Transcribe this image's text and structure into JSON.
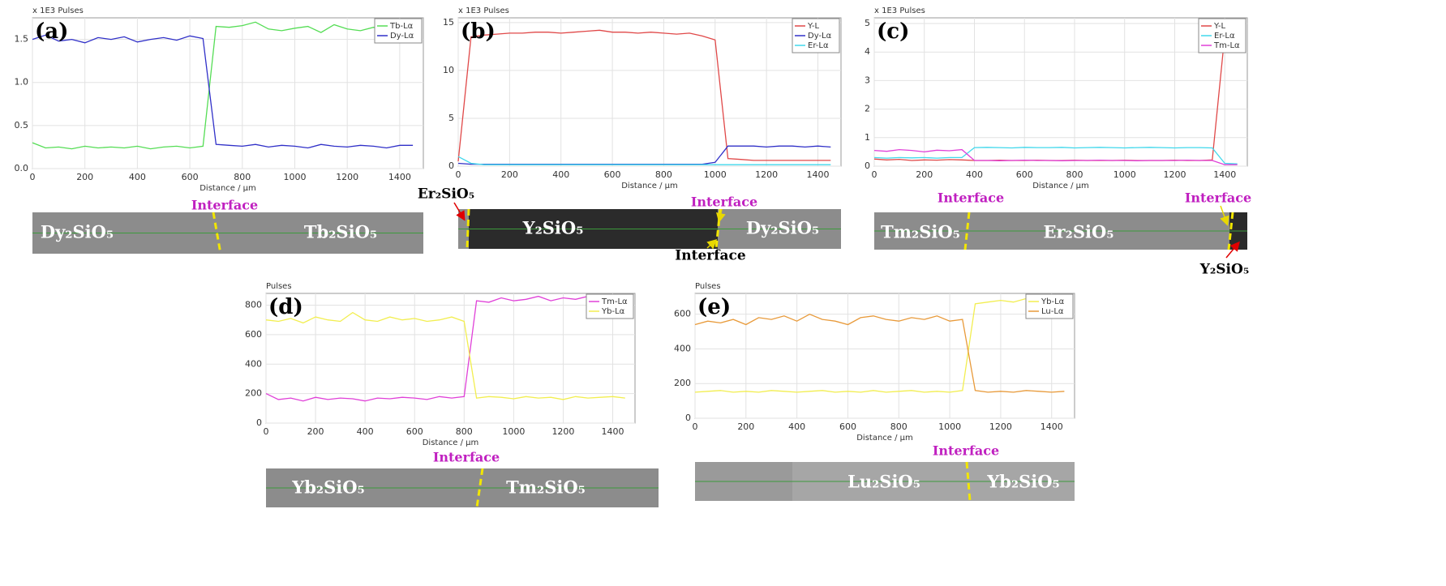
{
  "chart_data": [
    {
      "type": "line",
      "panel_label": "(a)",
      "y_unit_label": "x 1E3 Pulses",
      "xlabel": "Distance / µm",
      "x": [
        0,
        50,
        100,
        150,
        200,
        250,
        300,
        350,
        400,
        450,
        500,
        550,
        600,
        650,
        700,
        750,
        800,
        850,
        900,
        950,
        1000,
        1050,
        1100,
        1150,
        1200,
        1250,
        1300,
        1350,
        1400,
        1450
      ],
      "series": [
        {
          "name": "Tb-Lα",
          "color": "#55dd55",
          "values": [
            0.3,
            0.24,
            0.25,
            0.23,
            0.26,
            0.24,
            0.25,
            0.24,
            0.26,
            0.23,
            0.25,
            0.26,
            0.24,
            0.26,
            1.65,
            1.64,
            1.66,
            1.7,
            1.62,
            1.6,
            1.63,
            1.65,
            1.58,
            1.67,
            1.62,
            1.6,
            1.64,
            1.63,
            1.55,
            1.58
          ]
        },
        {
          "name": "Dy-Lα",
          "color": "#3030c8",
          "values": [
            1.5,
            1.55,
            1.48,
            1.5,
            1.46,
            1.52,
            1.5,
            1.53,
            1.47,
            1.5,
            1.52,
            1.49,
            1.54,
            1.51,
            0.28,
            0.27,
            0.26,
            0.28,
            0.25,
            0.27,
            0.26,
            0.24,
            0.28,
            0.26,
            0.25,
            0.27,
            0.26,
            0.24,
            0.27,
            0.27
          ]
        }
      ],
      "xlim": [
        0,
        1490
      ],
      "xticks": [
        0,
        200,
        400,
        600,
        800,
        1000,
        1200,
        1400
      ],
      "ylim": [
        0,
        1.75
      ],
      "yticks": [
        {
          "value": 0,
          "label": "0.0"
        },
        {
          "value": 0.5,
          "label": "0.5"
        },
        {
          "value": 1,
          "label": "1.0"
        },
        {
          "value": 1.5,
          "label": "1.5"
        }
      ],
      "grid": true,
      "legend": "upper right",
      "strip_labels": [
        "Dy₂SiO₅",
        "Tb₂SiO₅"
      ],
      "annotations": [
        "Interface"
      ]
    },
    {
      "type": "line",
      "panel_label": "(b)",
      "y_unit_label": "x 1E3 Pulses",
      "xlabel": "Distance / µm",
      "x": [
        0,
        50,
        100,
        150,
        200,
        250,
        300,
        350,
        400,
        450,
        500,
        550,
        600,
        650,
        700,
        750,
        800,
        850,
        900,
        950,
        1000,
        1050,
        1100,
        1150,
        1200,
        1250,
        1300,
        1350,
        1400,
        1450
      ],
      "series": [
        {
          "name": "Y-L",
          "color": "#e04848",
          "values": [
            0.5,
            13.5,
            13.7,
            13.8,
            13.9,
            13.9,
            14.0,
            14.0,
            13.9,
            14.0,
            14.1,
            14.2,
            14.0,
            14.0,
            13.9,
            14.0,
            13.9,
            13.8,
            13.9,
            13.6,
            13.2,
            0.8,
            0.7,
            0.6,
            0.6,
            0.6,
            0.6,
            0.6,
            0.6,
            0.6
          ]
        },
        {
          "name": "Dy-Lα",
          "color": "#3030c8",
          "values": [
            0.3,
            0.2,
            0.2,
            0.2,
            0.2,
            0.2,
            0.2,
            0.2,
            0.2,
            0.2,
            0.2,
            0.2,
            0.2,
            0.2,
            0.2,
            0.2,
            0.2,
            0.2,
            0.2,
            0.2,
            0.4,
            2.1,
            2.1,
            2.1,
            2.0,
            2.1,
            2.1,
            2.0,
            2.1,
            2.0
          ]
        },
        {
          "name": "Er-Lα",
          "color": "#40d8ec",
          "values": [
            1.0,
            0.3,
            0.15,
            0.15,
            0.15,
            0.15,
            0.15,
            0.15,
            0.15,
            0.15,
            0.15,
            0.15,
            0.15,
            0.15,
            0.15,
            0.15,
            0.15,
            0.15,
            0.15,
            0.15,
            0.15,
            0.15,
            0.15,
            0.15,
            0.15,
            0.15,
            0.15,
            0.15,
            0.15,
            0.15
          ]
        }
      ],
      "xlim": [
        0,
        1490
      ],
      "xticks": [
        0,
        200,
        400,
        600,
        800,
        1000,
        1200,
        1400
      ],
      "ylim": [
        0,
        15.5
      ],
      "yticks": [
        0,
        5,
        10,
        15
      ],
      "grid": true,
      "legend": "upper right",
      "strip_labels": [
        "Y₂SiO₅",
        "Dy₂SiO₅"
      ],
      "annotations": [
        "Er₂SiO₅",
        "Interface",
        "Interface"
      ]
    },
    {
      "type": "line",
      "panel_label": "(c)",
      "y_unit_label": "x 1E3 Pulses",
      "xlabel": "Distance / µm",
      "x": [
        0,
        50,
        100,
        150,
        200,
        250,
        300,
        350,
        400,
        450,
        500,
        550,
        600,
        650,
        700,
        750,
        800,
        850,
        900,
        950,
        1000,
        1050,
        1100,
        1150,
        1200,
        1250,
        1300,
        1350,
        1400,
        1450
      ],
      "series": [
        {
          "name": "Y-L",
          "color": "#e04848",
          "values": [
            0.25,
            0.22,
            0.24,
            0.2,
            0.22,
            0.21,
            0.23,
            0.22,
            0.2,
            0.2,
            0.21,
            0.2,
            0.2,
            0.21,
            0.2,
            0.2,
            0.21,
            0.2,
            0.2,
            0.2,
            0.21,
            0.2,
            0.2,
            0.2,
            0.21,
            0.2,
            0.2,
            0.22,
            4.6,
            4.7
          ]
        },
        {
          "name": "Er-Lα",
          "color": "#40d8ec",
          "values": [
            0.3,
            0.28,
            0.3,
            0.29,
            0.3,
            0.28,
            0.3,
            0.3,
            0.65,
            0.66,
            0.65,
            0.64,
            0.66,
            0.65,
            0.65,
            0.66,
            0.64,
            0.65,
            0.66,
            0.65,
            0.64,
            0.65,
            0.66,
            0.65,
            0.64,
            0.65,
            0.65,
            0.64,
            0.1,
            0.08
          ]
        },
        {
          "name": "Tm-Lα",
          "color": "#e040d8",
          "values": [
            0.55,
            0.52,
            0.58,
            0.55,
            0.5,
            0.56,
            0.54,
            0.58,
            0.2,
            0.2,
            0.19,
            0.2,
            0.21,
            0.2,
            0.2,
            0.19,
            0.2,
            0.2,
            0.21,
            0.2,
            0.2,
            0.19,
            0.2,
            0.2,
            0.2,
            0.21,
            0.2,
            0.2,
            0.05,
            0.05
          ]
        }
      ],
      "xlim": [
        0,
        1490
      ],
      "xticks": [
        0,
        200,
        400,
        600,
        800,
        1000,
        1200,
        1400
      ],
      "ylim": [
        0,
        5.2
      ],
      "yticks": [
        0,
        1,
        2,
        3,
        4,
        5
      ],
      "grid": true,
      "legend": "upper right",
      "strip_labels": [
        "Tm₂SiO₅",
        "Er₂SiO₅"
      ],
      "annotations": [
        "Interface",
        "Interface",
        "Y₂SiO₅"
      ]
    },
    {
      "type": "line",
      "panel_label": "(d)",
      "y_unit_label": "Pulses",
      "xlabel": "Distance / µm",
      "x": [
        0,
        50,
        100,
        150,
        200,
        250,
        300,
        350,
        400,
        450,
        500,
        550,
        600,
        650,
        700,
        750,
        800,
        850,
        900,
        950,
        1000,
        1050,
        1100,
        1150,
        1200,
        1250,
        1300,
        1350,
        1400,
        1450
      ],
      "series": [
        {
          "name": "Tm-Lα",
          "color": "#e040d8",
          "values": [
            200,
            160,
            170,
            150,
            175,
            160,
            170,
            165,
            150,
            170,
            165,
            175,
            170,
            160,
            180,
            170,
            180,
            830,
            820,
            850,
            830,
            840,
            860,
            830,
            850,
            840,
            860,
            830,
            850,
            840
          ]
        },
        {
          "name": "Yb-Lα",
          "color": "#f2ee50",
          "values": [
            700,
            690,
            710,
            680,
            720,
            700,
            690,
            750,
            700,
            690,
            720,
            700,
            710,
            690,
            700,
            720,
            690,
            170,
            180,
            175,
            165,
            180,
            170,
            175,
            160,
            180,
            170,
            175,
            180,
            170
          ]
        }
      ],
      "xlim": [
        0,
        1490
      ],
      "xticks": [
        0,
        200,
        400,
        600,
        800,
        1000,
        1200,
        1400
      ],
      "ylim": [
        0,
        880
      ],
      "yticks": [
        0,
        200,
        400,
        600,
        800
      ],
      "grid": true,
      "legend": "upper right",
      "strip_labels": [
        "Yb₂SiO₅",
        "Tm₂SiO₅"
      ],
      "annotations": [
        "Interface"
      ]
    },
    {
      "type": "line",
      "panel_label": "(e)",
      "y_unit_label": "Pulses",
      "xlabel": "Distance / µm",
      "x": [
        0,
        50,
        100,
        150,
        200,
        250,
        300,
        350,
        400,
        450,
        500,
        550,
        600,
        650,
        700,
        750,
        800,
        850,
        900,
        950,
        1000,
        1050,
        1100,
        1150,
        1200,
        1250,
        1300,
        1350,
        1400,
        1450
      ],
      "series": [
        {
          "name": "Yb-Lα",
          "color": "#f2ee50",
          "values": [
            150,
            155,
            160,
            150,
            155,
            150,
            160,
            155,
            150,
            155,
            160,
            150,
            155,
            150,
            160,
            150,
            155,
            160,
            150,
            155,
            150,
            160,
            660,
            670,
            680,
            670,
            690,
            680,
            670,
            680
          ]
        },
        {
          "name": "Lu-Lα",
          "color": "#e89a3a",
          "values": [
            540,
            560,
            550,
            570,
            540,
            580,
            570,
            590,
            560,
            600,
            570,
            560,
            540,
            580,
            590,
            570,
            560,
            580,
            570,
            590,
            560,
            570,
            160,
            150,
            155,
            150,
            160,
            155,
            150,
            155
          ]
        }
      ],
      "xlim": [
        0,
        1490
      ],
      "xticks": [
        0,
        200,
        400,
        600,
        800,
        1000,
        1200,
        1400
      ],
      "ylim": [
        0,
        720
      ],
      "yticks": [
        0,
        200,
        400,
        600
      ],
      "grid": true,
      "legend": "upper right",
      "strip_labels": [
        "Lu₂SiO₅",
        "Yb₂SiO₅"
      ],
      "annotations": [
        "Interface"
      ]
    }
  ]
}
